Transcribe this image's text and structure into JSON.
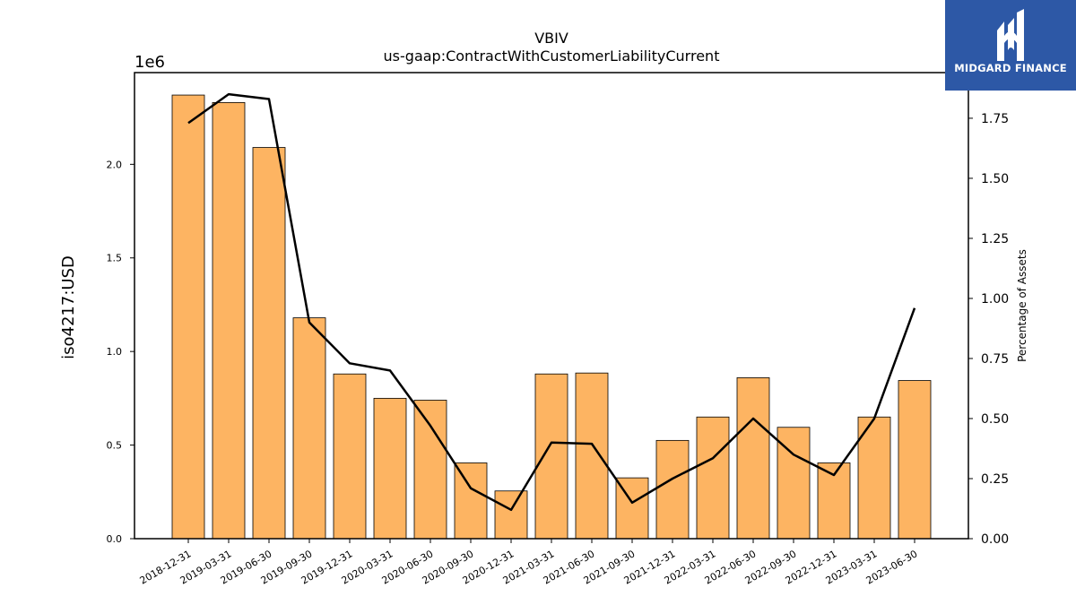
{
  "chart_data": {
    "type": "bar",
    "title": "VBIV",
    "subtitle": "us-gaap:ContractWithCustomerLiabilityCurrent",
    "ylabel": "iso4217:USD",
    "y2label": "Percentage of Assets",
    "y_offset_label": "1e6",
    "categories": [
      "2018-12-31",
      "2019-03-31",
      "2019-06-30",
      "2019-09-30",
      "2019-12-31",
      "2020-03-31",
      "2020-06-30",
      "2020-09-30",
      "2020-12-31",
      "2021-03-31",
      "2021-06-30",
      "2021-09-30",
      "2021-12-31",
      "2022-03-31",
      "2022-06-30",
      "2022-09-30",
      "2022-12-31",
      "2023-03-31",
      "2023-06-30"
    ],
    "series": [
      {
        "axis": "left",
        "type": "bar",
        "values": [
          2370000,
          2330000,
          2090000,
          1180000,
          880000,
          750000,
          740000,
          405000,
          255000,
          880000,
          885000,
          325000,
          525000,
          650000,
          860000,
          595000,
          405000,
          650000,
          845000
        ]
      },
      {
        "axis": "right",
        "type": "line",
        "values": [
          1.73,
          1.85,
          1.83,
          0.9,
          0.73,
          0.7,
          0.47,
          0.21,
          0.12,
          0.4,
          0.395,
          0.15,
          0.25,
          0.335,
          0.5,
          0.35,
          0.265,
          0.5,
          0.96
        ]
      }
    ],
    "ylim": [
      0,
      2490000
    ],
    "y_ticks": [
      0,
      500000,
      1000000,
      1500000,
      2000000
    ],
    "y_tick_labels": [
      "0.0",
      "0.5",
      "1.0",
      "1.5",
      "2.0"
    ],
    "y2lim": [
      0,
      1.94
    ],
    "y2_ticks": [
      0,
      0.25,
      0.5,
      0.75,
      1.0,
      1.25,
      1.5,
      1.75
    ],
    "y2_tick_labels": [
      "0.00",
      "0.25",
      "0.50",
      "0.75",
      "1.00",
      "1.25",
      "1.50",
      "1.75"
    ],
    "colors": {
      "bar_fill": "#fdb462",
      "bar_edge": "#000000",
      "line": "#000000"
    },
    "grid": false,
    "legend": "none"
  },
  "logo": {
    "text": "MIDGARD FINANCE",
    "background": "#2d58a6"
  }
}
